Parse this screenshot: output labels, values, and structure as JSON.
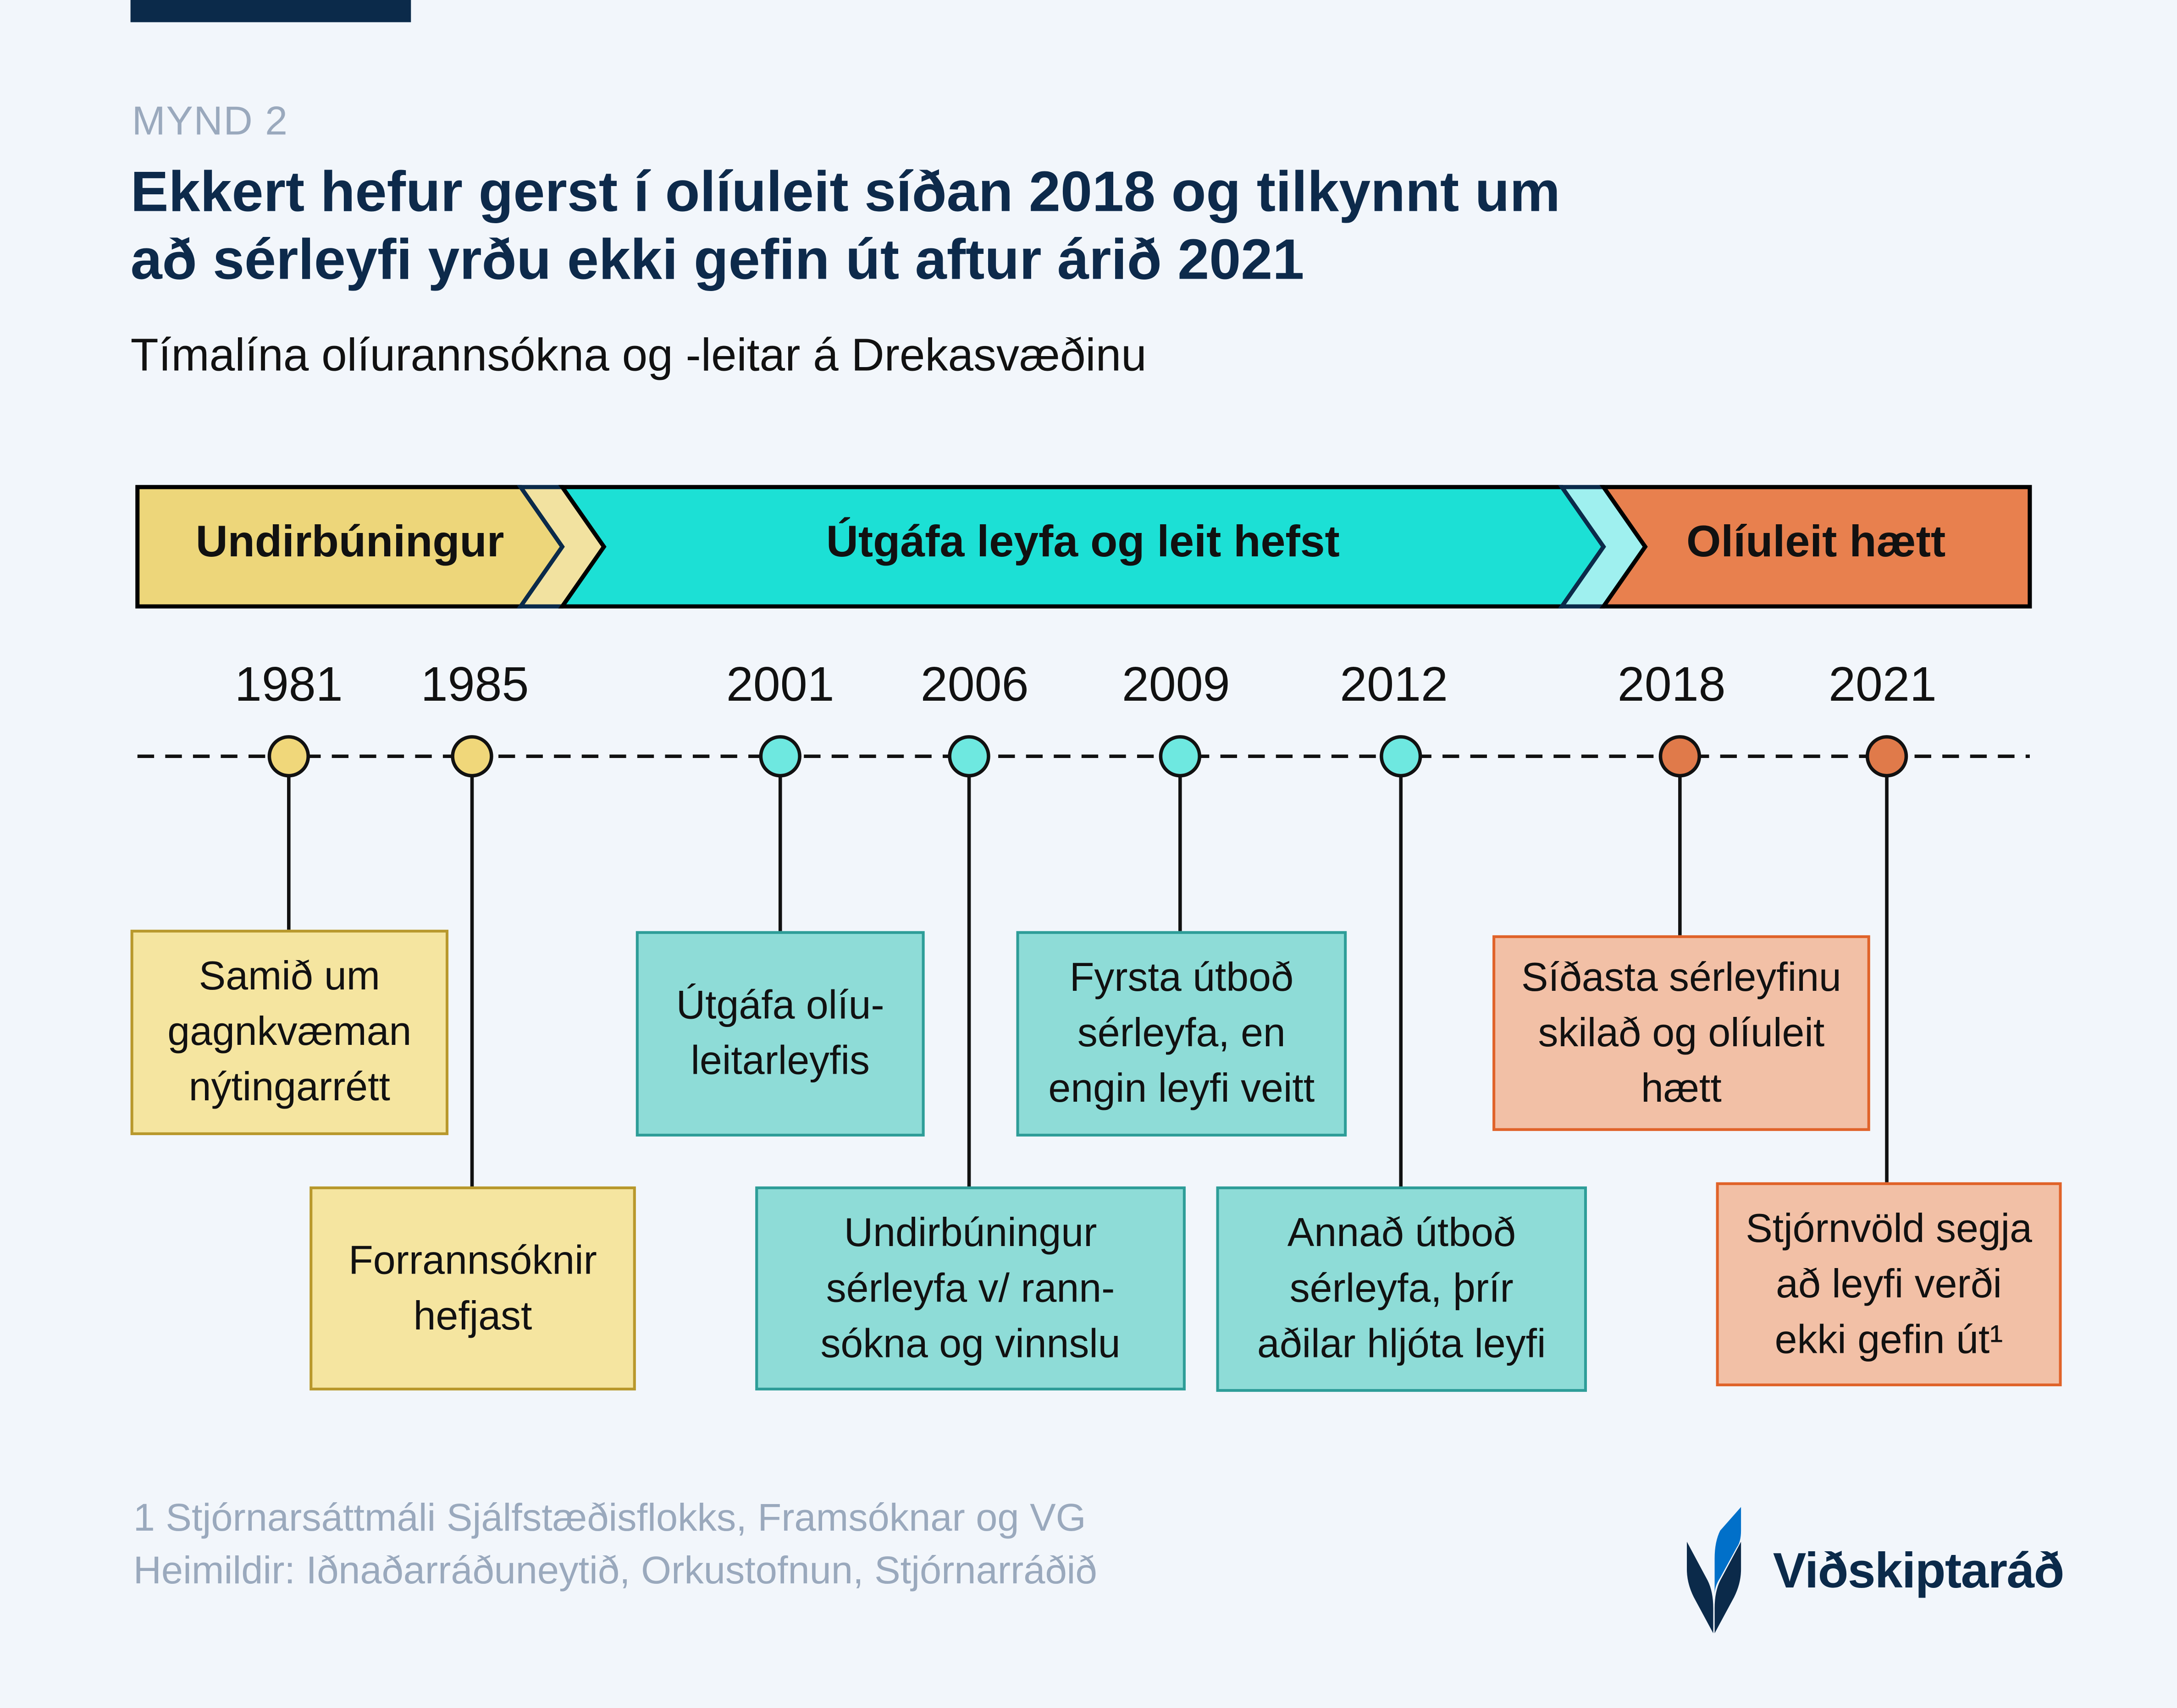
{
  "header": {
    "kicker": "MYND 2",
    "title": "Ekkert hefur gerst í olíuleit síðan 2018 og tilkynnt um\nað sérleyfi yrðu ekki gefin út aftur árið 2021",
    "subtitle": "Tímalína olíurannsókna og -leitar á Drekasvæðinu"
  },
  "phases": [
    {
      "label": "Undirbúningur",
      "color": "#edd67a"
    },
    {
      "label": "Útgáfa leyfa og leit hefst",
      "color": "#1ce0d5"
    },
    {
      "label": "Olíuleit hætt",
      "color": "#e8804e"
    }
  ],
  "events": [
    {
      "year": "1981",
      "text": "Samið um\ngagnkvæman\nnýtingarrétt",
      "phase": "yellow"
    },
    {
      "year": "1985",
      "text": "Forrannsóknir\nhefjast",
      "phase": "yellow"
    },
    {
      "year": "2001",
      "text": "Útgáfa olíu-\nleitarleyfis",
      "phase": "cyan"
    },
    {
      "year": "2006",
      "text": "Undirbúningur\nsérleyfa v/ rann-\nsókna og vinnslu",
      "phase": "cyan"
    },
    {
      "year": "2009",
      "text": "Fyrsta útboð\nsérleyfa, en\nengin leyfi veitt",
      "phase": "cyan"
    },
    {
      "year": "2012",
      "text": "Annað útboð\nsérleyfa, þrír\naðilar hljóta leyfi",
      "phase": "cyan"
    },
    {
      "year": "2018",
      "text": "Síðasta sérleyfinu\nskilað og olíuleit\nhætt",
      "phase": "orange"
    },
    {
      "year": "2021",
      "text": "Stjórnvöld segja\nað leyfi verði\nekki gefin út¹",
      "phase": "orange"
    }
  ],
  "footer": {
    "footnote": "1 Stjórnarsáttmáli Sjálfstæðisflokks, Framsóknar og VG",
    "sources": "Heimildir: Iðnaðarráðuneytið, Orkustofnun, Stjórnarráðið"
  },
  "logo": {
    "text": "Viðskiptaráð"
  }
}
